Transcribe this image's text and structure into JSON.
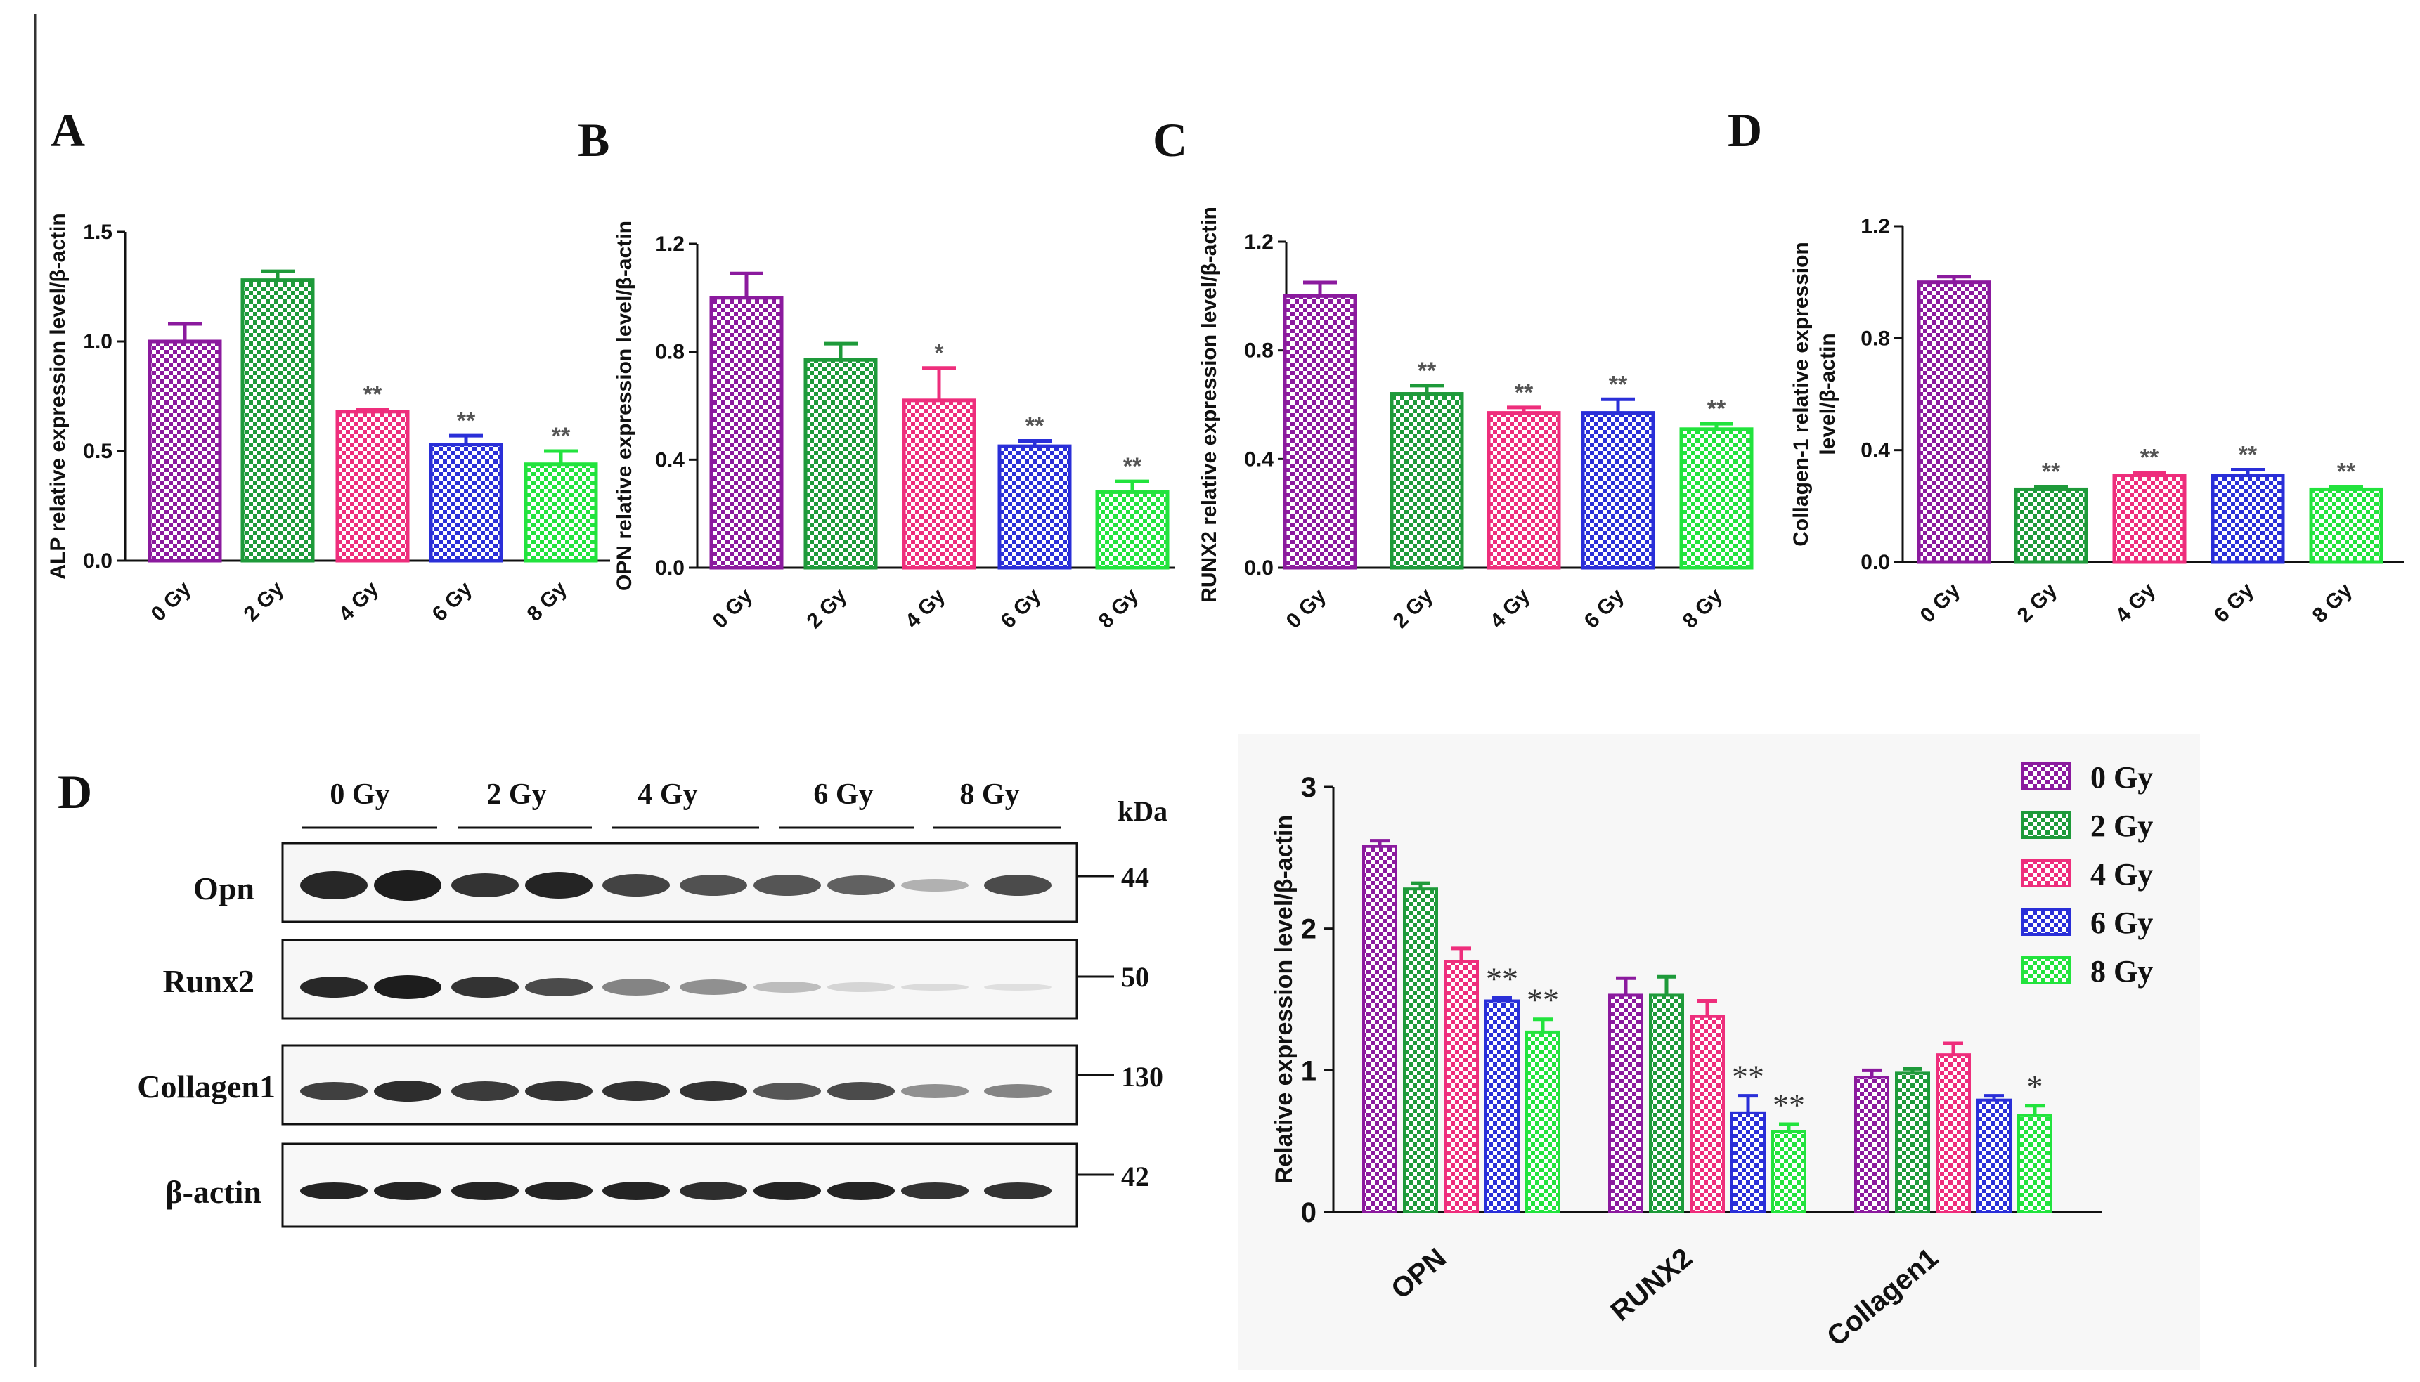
{
  "colors": {
    "0 Gy": "#8b1a9e",
    "2 Gy": "#1e9a3a",
    "4 Gy": "#ee2e7c",
    "6 Gy": "#2a2fd8",
    "8 Gy": "#22e33d"
  },
  "blot": {
    "panel_letter": "D",
    "kda_label": "kDa",
    "lanes": [
      "0 Gy",
      "2 Gy",
      "4 Gy",
      "6 Gy",
      "8 Gy"
    ],
    "rows": [
      {
        "label": "Opn",
        "kda": "44"
      },
      {
        "label": "Runx2",
        "kda": "50"
      },
      {
        "label": "Collagen1",
        "kda": "130"
      },
      {
        "label": "β-actin",
        "kda": "42"
      }
    ]
  },
  "chart_data": [
    {
      "type": "bar",
      "panel_letter": "A",
      "ylabel": "ALP relative expression level/β-actin",
      "categories": [
        "0 Gy",
        "2 Gy",
        "4 Gy",
        "6 Gy",
        "8 Gy"
      ],
      "values": [
        1.0,
        1.28,
        0.68,
        0.53,
        0.44
      ],
      "errors": [
        0.08,
        0.04,
        0.01,
        0.04,
        0.06
      ],
      "significance": [
        "",
        "",
        "**",
        "**",
        "**"
      ],
      "ylim": [
        0,
        1.5
      ],
      "yticks": [
        "0.0",
        "0.5",
        "1.0",
        "1.5"
      ]
    },
    {
      "type": "bar",
      "panel_letter": "B",
      "ylabel": "OPN relative expression level/β-actin",
      "categories": [
        "0 Gy",
        "2 Gy",
        "4 Gy",
        "6 Gy",
        "8 Gy"
      ],
      "values": [
        1.0,
        0.77,
        0.62,
        0.45,
        0.28
      ],
      "errors": [
        0.09,
        0.06,
        0.12,
        0.02,
        0.04
      ],
      "significance": [
        "",
        "",
        "*",
        "**",
        "**"
      ],
      "ylim": [
        0,
        1.2
      ],
      "yticks": [
        "0.0",
        "0.4",
        "0.8",
        "1.2"
      ]
    },
    {
      "type": "bar",
      "panel_letter": "C",
      "ylabel": "RUNX2 relative expression level/β-actin",
      "categories": [
        "0 Gy",
        "2 Gy",
        "4 Gy",
        "6 Gy",
        "8 Gy"
      ],
      "values": [
        1.0,
        0.64,
        0.57,
        0.57,
        0.51
      ],
      "errors": [
        0.05,
        0.03,
        0.02,
        0.05,
        0.02
      ],
      "significance": [
        "",
        "**",
        "**",
        "**",
        "**"
      ],
      "ylim": [
        0,
        1.2
      ],
      "yticks": [
        "0.0",
        "0.4",
        "0.8",
        "1.2"
      ]
    },
    {
      "type": "bar",
      "panel_letter": "D",
      "ylabel_lines": [
        "Collagen-1 relative expression",
        "level/β-actin"
      ],
      "categories": [
        "0 Gy",
        "2 Gy",
        "4 Gy",
        "6 Gy",
        "8 Gy"
      ],
      "values": [
        1.0,
        0.26,
        0.31,
        0.31,
        0.26
      ],
      "errors": [
        0.02,
        0.01,
        0.01,
        0.02,
        0.01
      ],
      "significance": [
        "",
        "**",
        "**",
        "**",
        "**"
      ],
      "ylim": [
        0,
        1.2
      ],
      "yticks": [
        "0.0",
        "0.4",
        "0.8",
        "1.2"
      ]
    },
    {
      "type": "bar",
      "ylabel": "Relative expression level/β-actin",
      "categories": [
        "OPN",
        "RUNX2",
        "Collagen1"
      ],
      "ylim": [
        0,
        3
      ],
      "yticks": [
        "0",
        "1",
        "2",
        "3"
      ],
      "legend_position": "top-right",
      "series": [
        {
          "name": "0 Gy",
          "values": [
            2.58,
            1.53,
            0.95
          ],
          "errors": [
            0.04,
            0.12,
            0.05
          ],
          "significance": [
            "",
            "",
            ""
          ]
        },
        {
          "name": "2 Gy",
          "values": [
            2.28,
            1.53,
            0.98
          ],
          "errors": [
            0.04,
            0.13,
            0.03
          ],
          "significance": [
            "",
            "",
            ""
          ]
        },
        {
          "name": "4 Gy",
          "values": [
            1.77,
            1.38,
            1.11
          ],
          "errors": [
            0.09,
            0.11,
            0.08
          ],
          "significance": [
            "",
            "",
            ""
          ]
        },
        {
          "name": "6 Gy",
          "values": [
            1.49,
            0.7,
            0.79
          ],
          "errors": [
            0.02,
            0.12,
            0.03
          ],
          "significance": [
            "**",
            "**",
            ""
          ]
        },
        {
          "name": "8 Gy",
          "values": [
            1.27,
            0.57,
            0.68
          ],
          "errors": [
            0.09,
            0.05,
            0.07
          ],
          "significance": [
            "**",
            "**",
            "*"
          ]
        }
      ]
    }
  ]
}
